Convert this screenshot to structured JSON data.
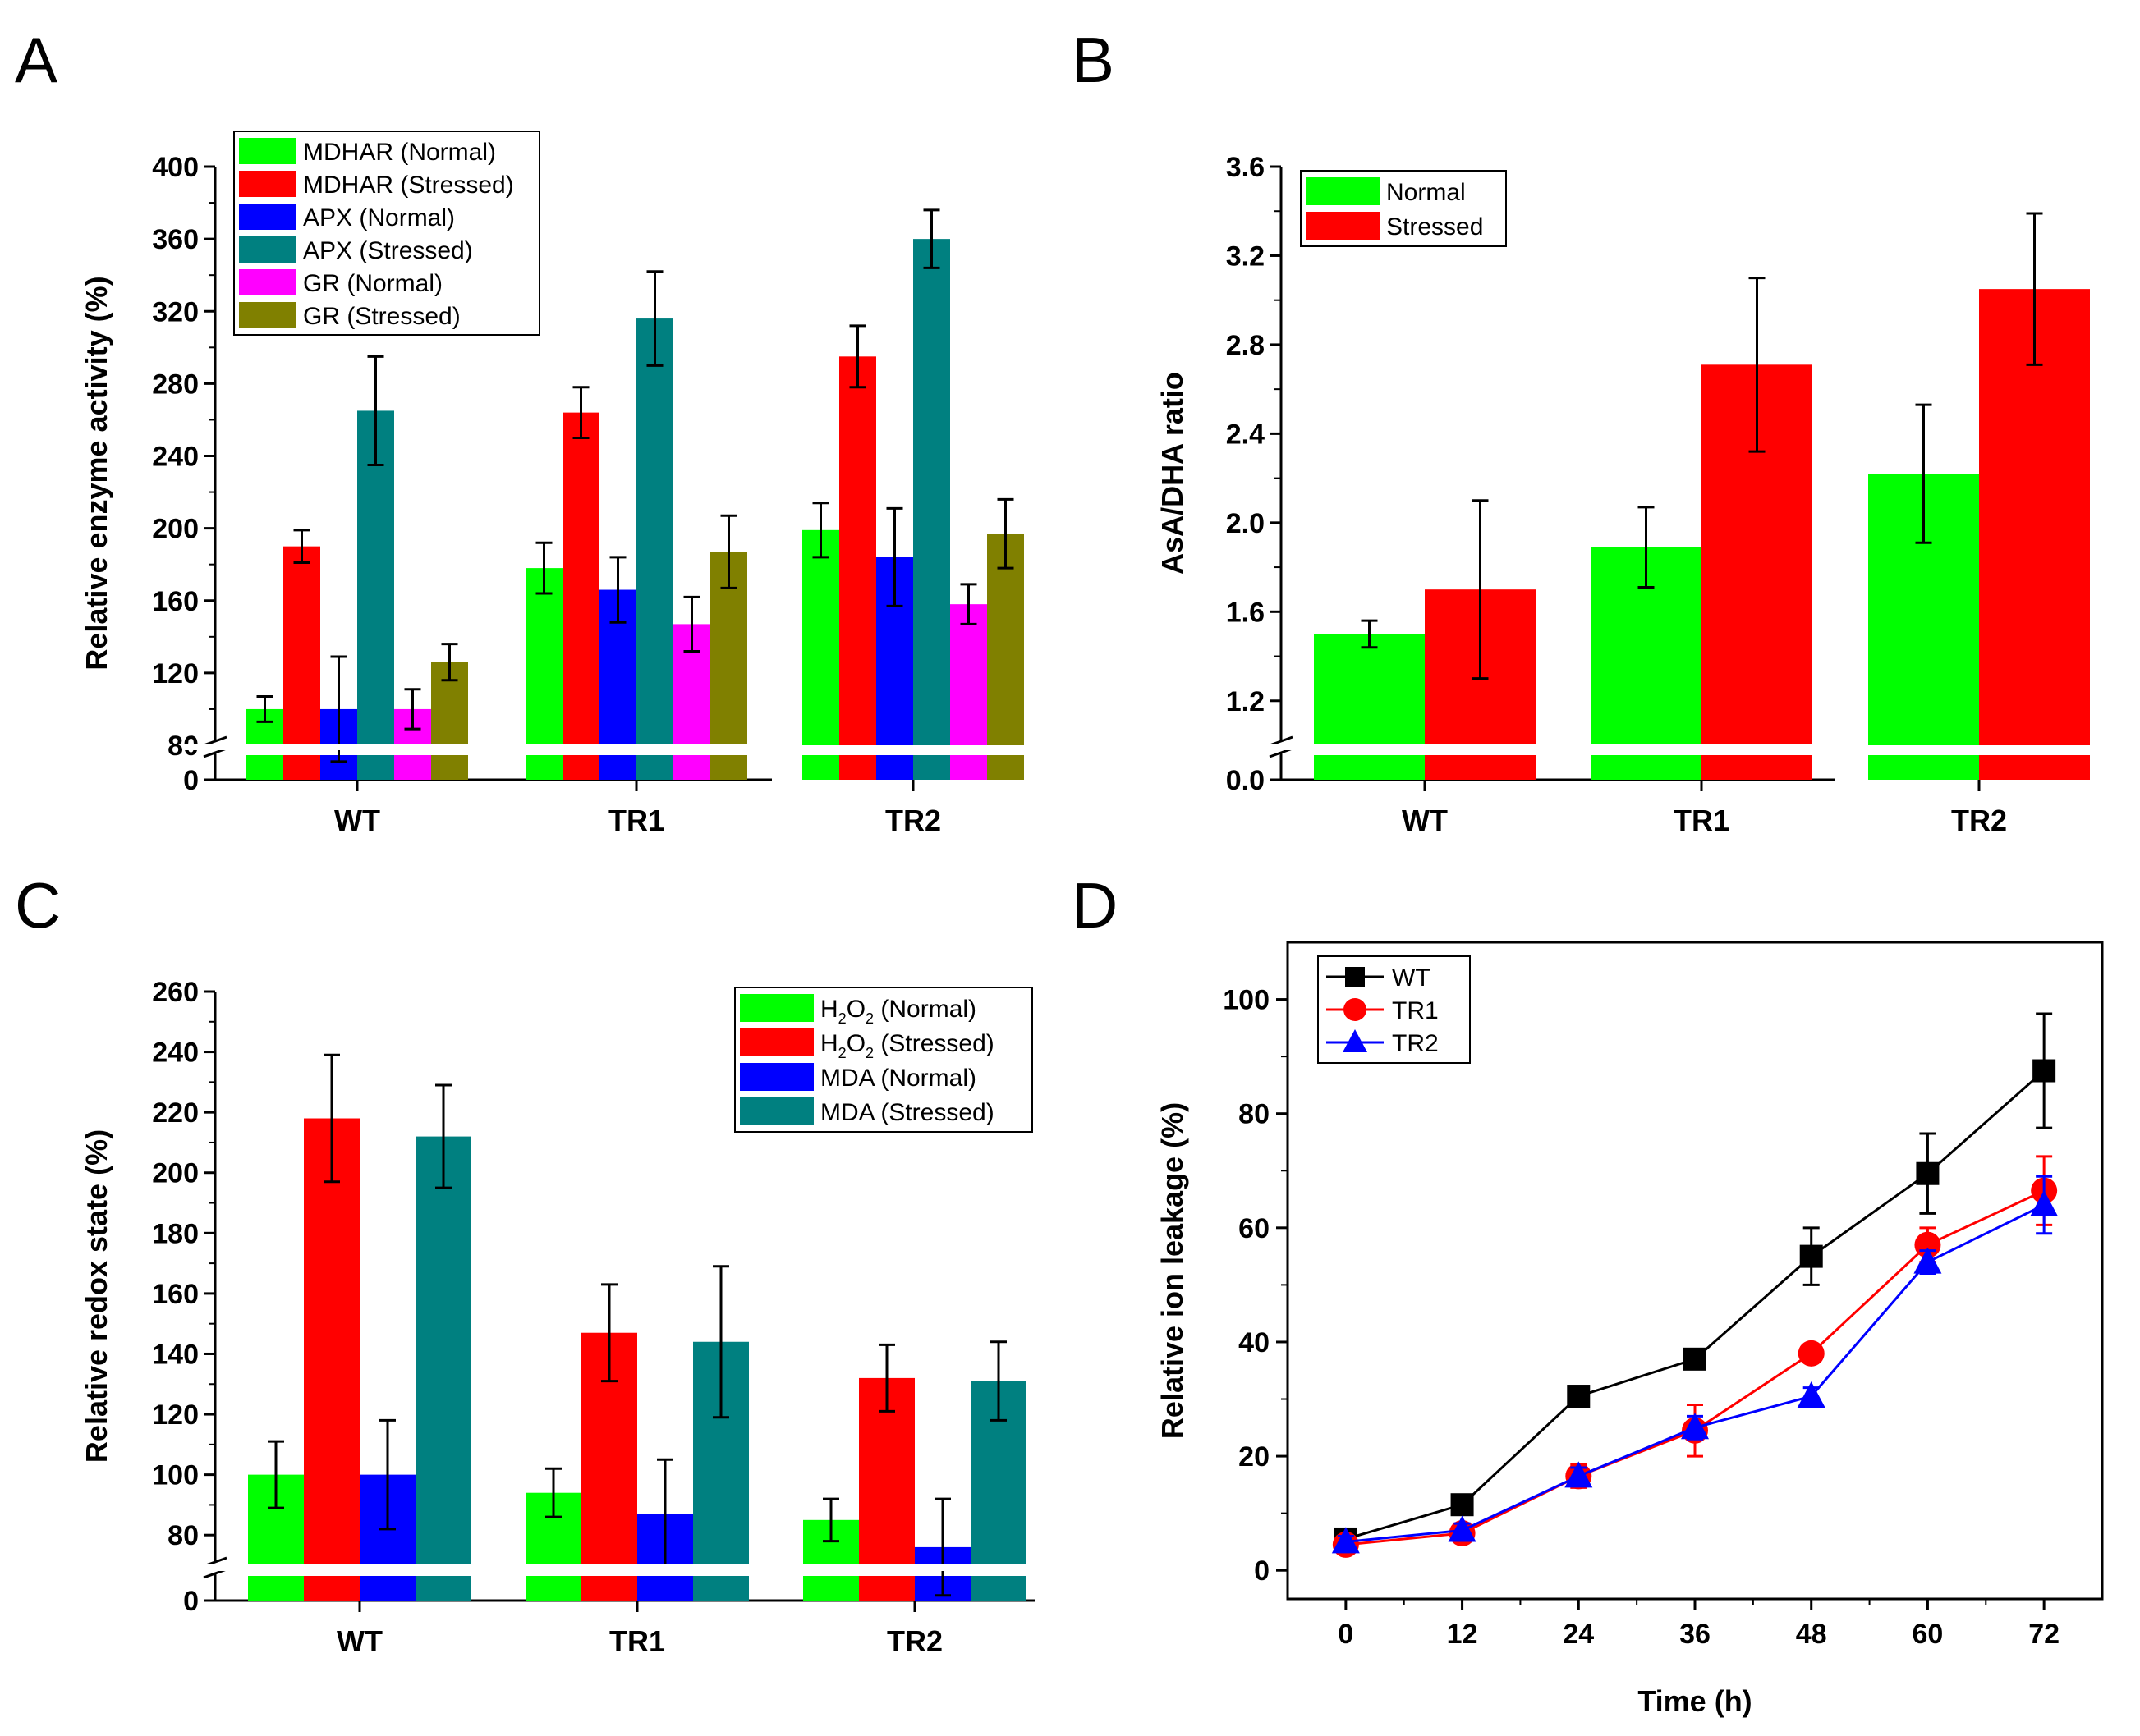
{
  "figure": {
    "panel_letters": [
      "A",
      "B",
      "C",
      "D"
    ]
  },
  "chart_data": [
    {
      "panel": "A",
      "type": "bar",
      "title": "",
      "xlabel": "",
      "ylabel": "Relative enzyme activity (%)",
      "ylim": [
        80,
        400
      ],
      "yticks": [
        "80",
        "120",
        "160",
        "200",
        "240",
        "280",
        "320",
        "360",
        "400"
      ],
      "axis_break": {
        "lower_tick": "0"
      },
      "legend_position": "top-left",
      "categories": [
        "WT",
        "TR1",
        "TR2"
      ],
      "series": [
        {
          "name": "MDHAR (Normal)",
          "color": "#00ff00",
          "values": [
            100,
            178,
            199
          ],
          "errors": [
            7,
            14,
            15
          ]
        },
        {
          "name": "MDHAR (Stressed)",
          "color": "#ff0000",
          "values": [
            190,
            264,
            295
          ],
          "errors": [
            9,
            14,
            17
          ]
        },
        {
          "name": "APX (Normal)",
          "color": "#0000ff",
          "values": [
            100,
            166,
            184
          ],
          "errors": [
            29,
            18,
            27
          ]
        },
        {
          "name": "APX (Stressed)",
          "color": "#008080",
          "values": [
            265,
            316,
            360
          ],
          "errors": [
            30,
            26,
            16
          ]
        },
        {
          "name": "GR (Normal)",
          "color": "#ff00ff",
          "values": [
            100,
            147,
            158
          ],
          "errors": [
            11,
            15,
            11
          ]
        },
        {
          "name": "GR (Stressed)",
          "color": "#808000",
          "values": [
            126,
            187,
            197
          ],
          "errors": [
            10,
            20,
            19
          ]
        }
      ]
    },
    {
      "panel": "B",
      "type": "bar",
      "title": "",
      "xlabel": "",
      "ylabel": "AsA/DHA ratio",
      "ylim": [
        1.0,
        3.6
      ],
      "yticks": [
        "1.2",
        "1.6",
        "2.0",
        "2.4",
        "2.8",
        "3.2",
        "3.6"
      ],
      "axis_break": {
        "lower_tick": "0.0"
      },
      "legend_position": "top-left",
      "categories": [
        "WT",
        "TR1",
        "TR2"
      ],
      "series": [
        {
          "name": "Normal",
          "color": "#00ff00",
          "values": [
            1.5,
            1.89,
            2.22
          ],
          "errors": [
            0.06,
            0.18,
            0.31
          ]
        },
        {
          "name": "Stressed",
          "color": "#ff0000",
          "values": [
            1.7,
            2.71,
            3.05
          ],
          "errors": [
            0.4,
            0.39,
            0.34
          ]
        }
      ]
    },
    {
      "panel": "C",
      "type": "bar",
      "title": "",
      "xlabel": "",
      "ylabel": "Relative redox state (%)",
      "ylim": [
        70,
        260
      ],
      "yticks": [
        "80",
        "100",
        "120",
        "140",
        "160",
        "180",
        "200",
        "220",
        "240",
        "260"
      ],
      "axis_break": {
        "lower_tick": "0"
      },
      "legend_position": "top-right",
      "categories": [
        "WT",
        "TR1",
        "TR2"
      ],
      "series": [
        {
          "name": "H2O2 (Normal)",
          "label_base": "H",
          "label_sub1": "2",
          "label_mid": "O",
          "label_sub2": "2",
          "label_rest": " (Normal)",
          "color": "#00ff00",
          "values": [
            100,
            94,
            85
          ],
          "errors": [
            11,
            8,
            7
          ]
        },
        {
          "name": "H2O2 (Stressed)",
          "label_base": "H",
          "label_sub1": "2",
          "label_mid": "O",
          "label_sub2": "2",
          "label_rest": " (Stressed)",
          "color": "#ff0000",
          "values": [
            218,
            147,
            132
          ],
          "errors": [
            21,
            16,
            11
          ]
        },
        {
          "name": "MDA (Normal)",
          "label_plain": "MDA (Normal)",
          "color": "#0000ff",
          "values": [
            100,
            87,
            76
          ],
          "errors": [
            18,
            18,
            16
          ]
        },
        {
          "name": "MDA (Stressed)",
          "label_plain": "MDA (Stressed)",
          "color": "#008080",
          "values": [
            212,
            144,
            131
          ],
          "errors": [
            17,
            25,
            13
          ]
        }
      ]
    },
    {
      "panel": "D",
      "type": "line",
      "title": "",
      "xlabel": "Time (h)",
      "ylabel": "Relative ion leakage (%)",
      "xlim": [
        -6,
        78
      ],
      "ylim": [
        -5,
        110
      ],
      "xticks": [
        "0",
        "12",
        "24",
        "36",
        "48",
        "60",
        "72"
      ],
      "yticks": [
        "0",
        "20",
        "40",
        "60",
        "80",
        "100"
      ],
      "legend_position": "top-left",
      "x": [
        0,
        12,
        24,
        36,
        48,
        60,
        72
      ],
      "series": [
        {
          "name": "WT",
          "color": "#000000",
          "marker": "square",
          "values": [
            5.5,
            11.5,
            30.5,
            37,
            55,
            69.5,
            87.5
          ],
          "errors": [
            1,
            1.5,
            1.2,
            1.5,
            5,
            7,
            10
          ]
        },
        {
          "name": "TR1",
          "color": "#ff0000",
          "marker": "circle",
          "values": [
            4.5,
            6.5,
            16.5,
            24.5,
            38,
            57,
            66.5
          ],
          "errors": [
            1,
            1.5,
            2,
            4.5,
            1.5,
            3,
            6
          ]
        },
        {
          "name": "TR2",
          "color": "#0000ff",
          "marker": "triangle",
          "values": [
            5,
            7,
            16.5,
            25,
            30.5,
            54,
            64
          ],
          "errors": [
            1,
            1.2,
            1.5,
            2,
            1.5,
            2,
            5
          ]
        }
      ]
    }
  ]
}
